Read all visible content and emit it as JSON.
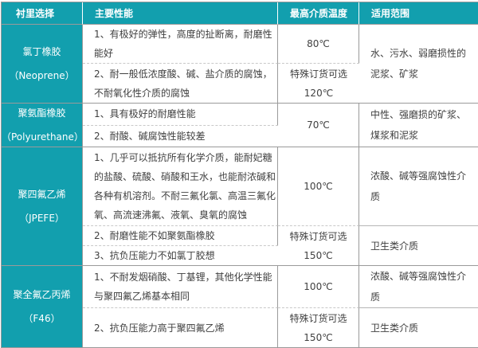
{
  "header": {
    "lining": "衬里选择",
    "performance": "主要性能",
    "max_temp": "最高介质温度",
    "scope": "适用范围"
  },
  "rows": [
    {
      "material_cn": "氯丁橡胶",
      "material_en": "（Neoprene）",
      "perf_1": "1、有极好的弹性，高度的扯断离，耐磨性能好",
      "perf_2": "2、耐一般低浓度酸、碱、盐介质的腐蚀，不耐氧化性介质的腐蚀",
      "temp_1": "80℃",
      "temp_2_line1": "特殊订货可选",
      "temp_2_line2": "120℃",
      "scope_1": "水、污水、弱磨损性的泥浆、矿浆"
    },
    {
      "material_cn": "聚氨酯橡胶",
      "material_en": "（Polyurethane）",
      "perf_1": "1、具有极好的耐磨性能",
      "perf_2": "2、耐酸、碱腐蚀性能较差",
      "temp_1": "70℃",
      "scope_1": "中性、强磨损的矿浆、煤浆和泥浆"
    },
    {
      "material_cn": "聚四氟乙烯",
      "material_en": "（JPEFE）",
      "perf_1": "1、几乎可以抵抗所有化学介质，能耐妃糖的盐酸、硫酸、硝酸和王水，也能耐浓碱和各种有机溶剂。不耐三氟化氯、高温三氟化氧、高流速沸氟、液氧、臭氧的腐蚀",
      "perf_2": "2、耐磨性能不如聚氨酯橡胶",
      "perf_3": "3、抗负压能力不如氯丁胶想",
      "temp_1": "100℃",
      "temp_2_line1": "特殊订货可选",
      "temp_2_line2": "150℃",
      "scope_1": "浓酸、碱等强腐蚀性介质",
      "scope_2": "卫生类介质"
    },
    {
      "material_cn": "聚全氟乙丙烯",
      "material_en": "（F46）",
      "perf_1": "1、不耐发烟硝酸、丁基锂，其他化学性能与聚四氟乙烯基本相同",
      "perf_2": "2、抗负压能力高于聚四氟乙烯",
      "temp_1": "100℃",
      "temp_2_line1": "特殊订货可选",
      "temp_2_line2": "150℃",
      "scope_1": "浓酸、碱等强腐蚀性介质",
      "scope_2": "卫生类介质"
    }
  ],
  "colors": {
    "accent_teal": "#129fae",
    "body_text": "#404040",
    "border_solid": "#9a9a9a",
    "border_dashed": "#c9c9c9"
  }
}
